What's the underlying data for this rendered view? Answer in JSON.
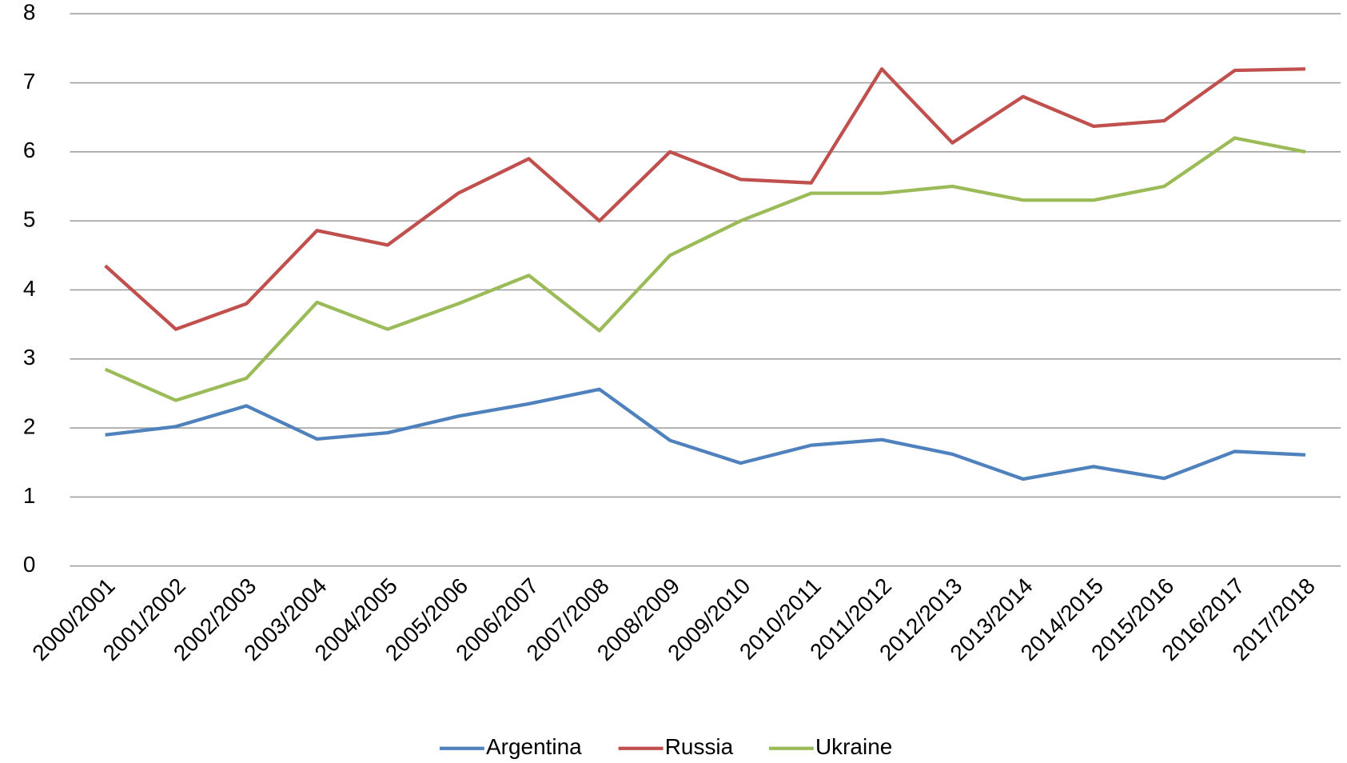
{
  "chart_data": {
    "type": "line",
    "categories": [
      "2000/2001",
      "2001/2002",
      "2002/2003",
      "2003/2004",
      "2004/2005",
      "2005/2006",
      "2006/2007",
      "2007/2008",
      "2008/2009",
      "2009/2010",
      "2010/2011",
      "2011/2012",
      "2012/2013",
      "2013/2014",
      "2014/2015",
      "2015/2016",
      "2016/2017",
      "2017/2018"
    ],
    "series": [
      {
        "name": "Argentina",
        "color": "#4f81bd",
        "values": [
          1.9,
          2.02,
          2.32,
          1.84,
          1.93,
          2.17,
          2.35,
          2.56,
          1.82,
          1.49,
          1.75,
          1.83,
          1.62,
          1.26,
          1.44,
          1.27,
          1.66,
          1.61
        ]
      },
      {
        "name": "Russia",
        "color": "#c0504d",
        "values": [
          4.35,
          3.43,
          3.8,
          4.86,
          4.65,
          5.4,
          5.9,
          5.0,
          6.0,
          5.6,
          5.55,
          7.2,
          6.13,
          6.8,
          6.37,
          6.45,
          7.18,
          7.2
        ]
      },
      {
        "name": "Ukraine",
        "color": "#9bbb59",
        "values": [
          2.85,
          2.4,
          2.72,
          3.82,
          3.43,
          3.8,
          4.21,
          3.41,
          4.5,
          5.0,
          5.4,
          5.4,
          5.5,
          5.3,
          5.3,
          5.5,
          6.2,
          6.0
        ]
      }
    ],
    "ylim": [
      0,
      8
    ],
    "yticks": [
      0,
      1,
      2,
      3,
      4,
      5,
      6,
      7,
      8
    ],
    "grid": true,
    "legend": "bottom"
  }
}
